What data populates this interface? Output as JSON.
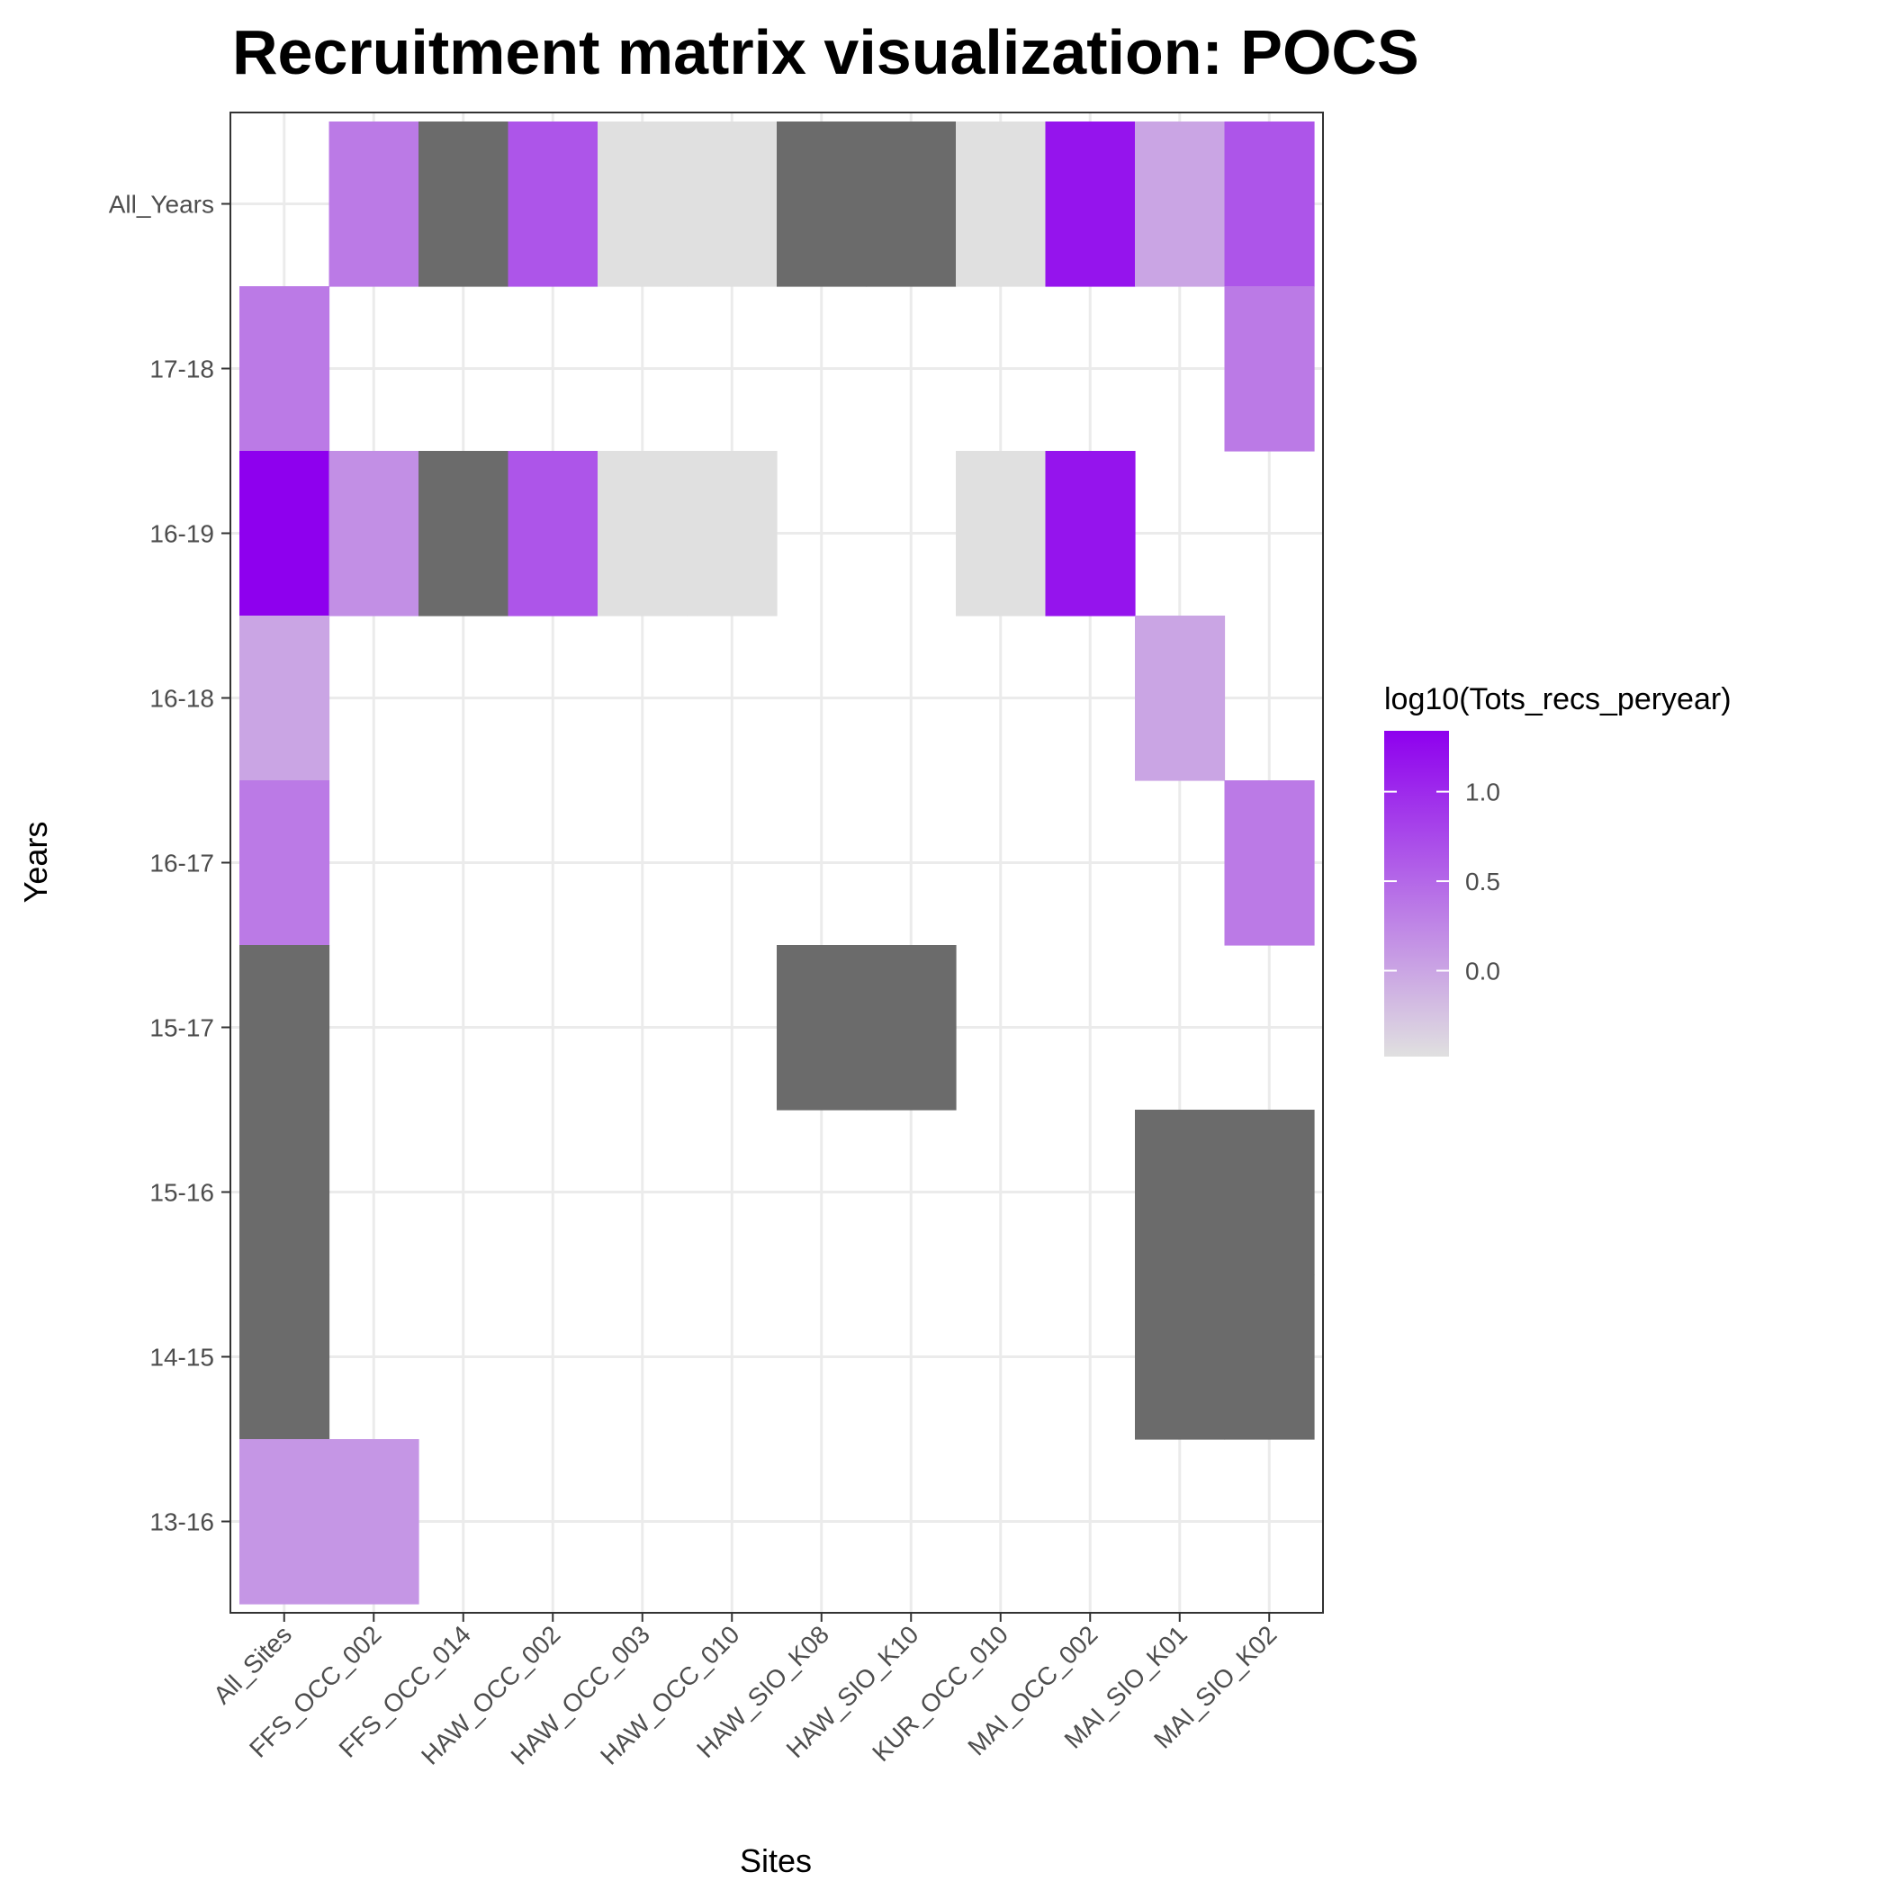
{
  "chart_data": {
    "type": "heatmap",
    "title": "Recruitment matrix visualization: POCS",
    "xlabel": "Sites",
    "ylabel": "Years",
    "x_categories": [
      "All_Sites",
      "FFS_OCC_002",
      "FFS_OCC_014",
      "HAW_OCC_002",
      "HAW_OCC_003",
      "HAW_OCC_010",
      "HAW_SIO_K08",
      "HAW_SIO_K10",
      "KUR_OCC_010",
      "MAI_OCC_002",
      "MAI_SIO_K01",
      "MAI_SIO_K02"
    ],
    "y_categories": [
      "13-16",
      "14-15",
      "15-16",
      "15-17",
      "16-17",
      "16-18",
      "16-19",
      "17-18",
      "All_Years"
    ],
    "legend": {
      "title": "log10(Tots_recs_peryear)",
      "ticks": [
        0.0,
        0.5,
        1.0
      ],
      "tick_labels": [
        "0.0",
        "0.5",
        "1.0"
      ],
      "min": -0.48,
      "max": 1.34,
      "low_color": "#E0E0E0",
      "high_color": "#8E00EE",
      "placement": "right"
    },
    "na_color": "#6B6B6B",
    "grid": true,
    "cells": [
      {
        "x": "FFS_OCC_002",
        "y": "All_Years",
        "value": 0.35
      },
      {
        "x": "FFS_OCC_014",
        "y": "All_Years",
        "value": null
      },
      {
        "x": "HAW_OCC_002",
        "y": "All_Years",
        "value": 0.65
      },
      {
        "x": "HAW_OCC_003",
        "y": "All_Years",
        "value": -0.48
      },
      {
        "x": "HAW_OCC_010",
        "y": "All_Years",
        "value": -0.48
      },
      {
        "x": "HAW_SIO_K08",
        "y": "All_Years",
        "value": null
      },
      {
        "x": "HAW_SIO_K10",
        "y": "All_Years",
        "value": null
      },
      {
        "x": "KUR_OCC_010",
        "y": "All_Years",
        "value": -0.48
      },
      {
        "x": "MAI_OCC_002",
        "y": "All_Years",
        "value": 1.18
      },
      {
        "x": "MAI_SIO_K01",
        "y": "All_Years",
        "value": 0.0
      },
      {
        "x": "MAI_SIO_K02",
        "y": "All_Years",
        "value": 0.65
      },
      {
        "x": "All_Sites",
        "y": "17-18",
        "value": 0.35
      },
      {
        "x": "MAI_SIO_K02",
        "y": "17-18",
        "value": 0.35
      },
      {
        "x": "All_Sites",
        "y": "16-19",
        "value": 1.34
      },
      {
        "x": "FFS_OCC_002",
        "y": "16-19",
        "value": 0.18
      },
      {
        "x": "FFS_OCC_014",
        "y": "16-19",
        "value": null
      },
      {
        "x": "HAW_OCC_002",
        "y": "16-19",
        "value": 0.65
      },
      {
        "x": "HAW_OCC_003",
        "y": "16-19",
        "value": -0.48
      },
      {
        "x": "HAW_OCC_010",
        "y": "16-19",
        "value": -0.48
      },
      {
        "x": "KUR_OCC_010",
        "y": "16-19",
        "value": -0.48
      },
      {
        "x": "MAI_OCC_002",
        "y": "16-19",
        "value": 1.18
      },
      {
        "x": "All_Sites",
        "y": "16-18",
        "value": 0.0
      },
      {
        "x": "MAI_SIO_K01",
        "y": "16-18",
        "value": 0.0
      },
      {
        "x": "All_Sites",
        "y": "16-17",
        "value": 0.35
      },
      {
        "x": "MAI_SIO_K02",
        "y": "16-17",
        "value": 0.35
      },
      {
        "x": "All_Sites",
        "y": "15-17",
        "value": null
      },
      {
        "x": "HAW_SIO_K08",
        "y": "15-17",
        "value": null
      },
      {
        "x": "HAW_SIO_K10",
        "y": "15-17",
        "value": null
      },
      {
        "x": "All_Sites",
        "y": "15-16",
        "value": null
      },
      {
        "x": "MAI_SIO_K01",
        "y": "15-16",
        "value": null
      },
      {
        "x": "MAI_SIO_K02",
        "y": "15-16",
        "value": null
      },
      {
        "x": "All_Sites",
        "y": "14-15",
        "value": null
      },
      {
        "x": "MAI_SIO_K01",
        "y": "14-15",
        "value": null
      },
      {
        "x": "MAI_SIO_K02",
        "y": "14-15",
        "value": null
      },
      {
        "x": "All_Sites",
        "y": "13-16",
        "value": 0.12
      },
      {
        "x": "FFS_OCC_002",
        "y": "13-16",
        "value": 0.12
      }
    ]
  }
}
